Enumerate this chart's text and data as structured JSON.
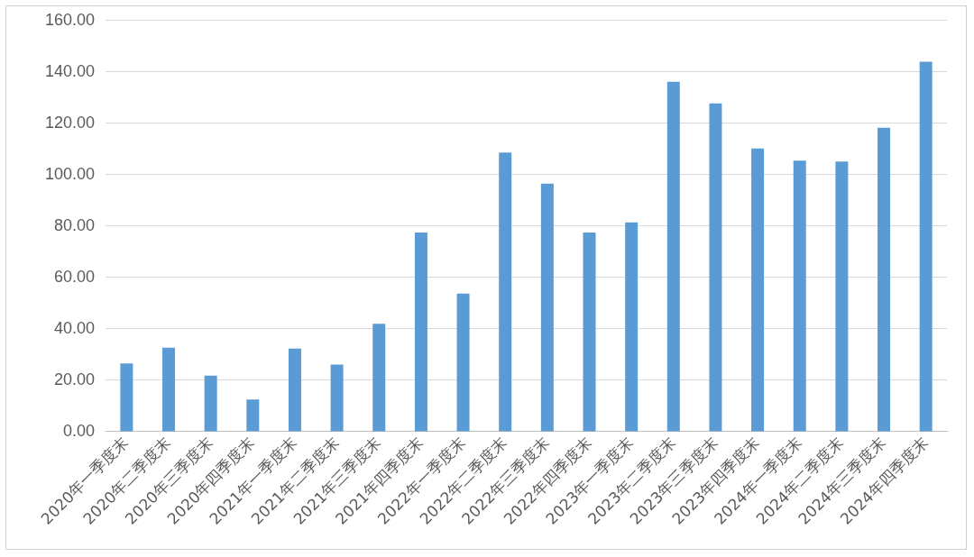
{
  "chart_data": {
    "type": "bar",
    "categories": [
      "2020年一季度末",
      "2020年二季度末",
      "2020年三季度末",
      "2020年四季度末",
      "2021年一季度末",
      "2021年二季度末",
      "2021年三季度末",
      "2021年四季度末",
      "2022年一季度末",
      "2022年二季度末",
      "2022年三季度末",
      "2022年四季度末",
      "2023年一季度末",
      "2023年二季度末",
      "2023年三季度末",
      "2023年四季度末",
      "2024年一季度末",
      "2024年二季度末",
      "2024年三季度末",
      "2024年四季度末"
    ],
    "values": [
      26.5,
      32.7,
      21.8,
      12.5,
      32.3,
      26.1,
      42.0,
      77.5,
      53.7,
      108.6,
      96.5,
      77.5,
      81.4,
      136.2,
      127.7,
      110.2,
      105.5,
      105.1,
      118.3,
      144.0
    ],
    "color": "#5b9bd5",
    "ylim": [
      0,
      160
    ],
    "yticks": [
      {
        "value": 0,
        "label": "0.00"
      },
      {
        "value": 20,
        "label": "20.00"
      },
      {
        "value": 40,
        "label": "40.00"
      },
      {
        "value": 60,
        "label": "60.00"
      },
      {
        "value": 80,
        "label": "80.00"
      },
      {
        "value": 100,
        "label": "100.00"
      },
      {
        "value": 120,
        "label": "120.00"
      },
      {
        "value": 140,
        "label": "140.00"
      },
      {
        "value": 160,
        "label": "160.00"
      }
    ],
    "grid": "y"
  }
}
